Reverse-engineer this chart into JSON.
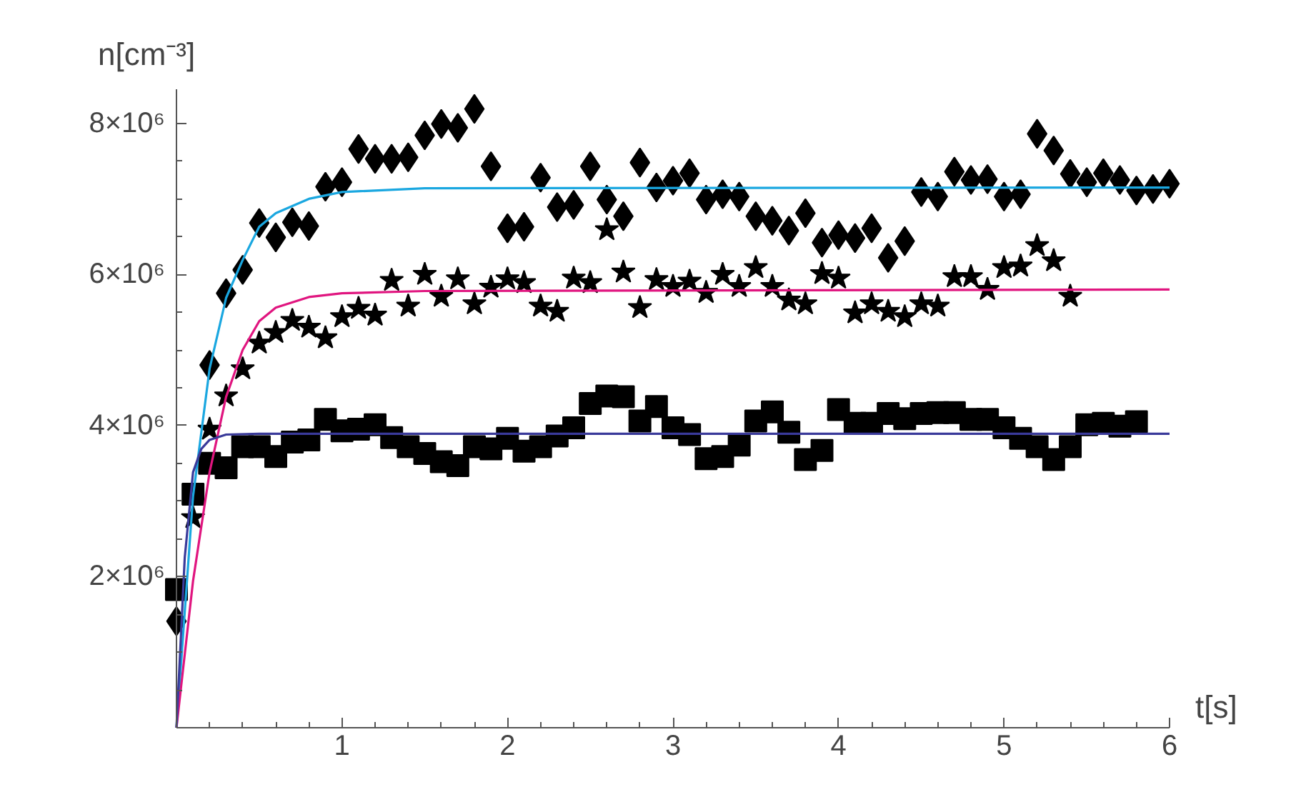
{
  "chart_data": {
    "type": "scatter",
    "xlabel": "t[s]",
    "ylabel": "n[cm⁻³]",
    "x": [
      0,
      0.1,
      0.2,
      0.3,
      0.4,
      0.5,
      0.6,
      0.7,
      0.8,
      0.9,
      1.0,
      1.1,
      1.2,
      1.3,
      1.4,
      1.5,
      1.6,
      1.7,
      1.8,
      1.9,
      2.0,
      2.1,
      2.2,
      2.3,
      2.4,
      2.5,
      2.6,
      2.7,
      2.8,
      2.9,
      3.0,
      3.1,
      3.2,
      3.3,
      3.4,
      3.5,
      3.6,
      3.7,
      3.8,
      3.9,
      4.0,
      4.1,
      4.2,
      4.3,
      4.4,
      4.5,
      4.6,
      4.7,
      4.8,
      4.9,
      5.0,
      5.1,
      5.2,
      5.3,
      5.4,
      5.5,
      5.6,
      5.7,
      5.8,
      5.9,
      6.0
    ],
    "series": [
      {
        "marker": "diamond",
        "color": "#000000",
        "values": [
          1410000,
          null,
          4800000,
          5750000,
          6060000,
          6680000,
          6490000,
          6690000,
          6640000,
          7160000,
          7220000,
          7660000,
          7530000,
          7530000,
          7550000,
          7840000,
          7990000,
          7940000,
          8190000,
          7430000,
          6610000,
          6630000,
          7280000,
          6890000,
          6920000,
          7430000,
          6990000,
          6770000,
          7480000,
          7150000,
          7240000,
          7340000,
          6990000,
          7060000,
          7030000,
          6770000,
          6710000,
          6580000,
          6810000,
          6420000,
          6520000,
          6480000,
          6610000,
          6220000,
          6440000,
          7090000,
          7030000,
          7360000,
          7250000,
          7260000,
          7030000,
          7060000,
          7860000,
          7640000,
          7330000,
          7220000,
          7340000,
          7250000,
          7110000,
          7130000,
          7200000
        ]
      },
      {
        "marker": "star",
        "color": "#000000",
        "values": [
          null,
          2780000,
          3950000,
          4390000,
          4750000,
          5090000,
          5230000,
          5390000,
          5300000,
          5160000,
          5440000,
          5550000,
          5460000,
          5920000,
          5580000,
          6000000,
          5710000,
          5940000,
          5610000,
          5830000,
          5940000,
          5890000,
          5580000,
          5510000,
          5950000,
          5890000,
          6590000,
          6030000,
          5560000,
          5930000,
          5840000,
          5910000,
          5760000,
          6000000,
          5840000,
          6090000,
          5840000,
          5660000,
          5610000,
          6010000,
          5950000,
          5490000,
          5610000,
          5510000,
          5440000,
          5610000,
          5580000,
          5970000,
          5970000,
          5800000,
          6090000,
          6110000,
          6380000,
          6180000,
          5710000,
          null,
          null,
          null,
          null,
          null,
          null
        ]
      },
      {
        "marker": "square",
        "color": "#000000",
        "values": [
          1830000,
          3090000,
          3500000,
          3440000,
          3720000,
          3720000,
          3590000,
          3780000,
          3810000,
          4080000,
          3930000,
          3950000,
          4010000,
          3840000,
          3720000,
          3630000,
          3520000,
          3470000,
          3720000,
          3690000,
          3830000,
          3660000,
          3720000,
          3860000,
          3970000,
          4290000,
          4390000,
          4380000,
          4060000,
          4250000,
          3970000,
          3880000,
          3560000,
          3590000,
          3740000,
          4060000,
          4180000,
          3910000,
          3550000,
          3670000,
          4210000,
          4030000,
          4030000,
          4160000,
          4090000,
          4160000,
          4170000,
          4170000,
          4080000,
          4080000,
          3970000,
          3830000,
          3720000,
          3550000,
          3720000,
          4010000,
          4030000,
          3990000,
          4050000,
          null,
          null
        ]
      },
      {
        "type": "line",
        "marker": "none",
        "color": "#1aa7e0",
        "x": [
          0,
          0.1,
          0.2,
          0.3,
          0.4,
          0.5,
          0.6,
          0.8,
          1.0,
          1.5,
          6.0
        ],
        "values": [
          0,
          3060000,
          4750000,
          5690000,
          6190000,
          6630000,
          6810000,
          7000000,
          7090000,
          7140000,
          7150000
        ]
      },
      {
        "type": "line",
        "marker": "none",
        "color": "#e0157f",
        "x": [
          0,
          0.1,
          0.2,
          0.3,
          0.4,
          0.5,
          0.6,
          0.8,
          1.0,
          1.5,
          6.0
        ],
        "values": [
          0,
          1940000,
          3380000,
          4380000,
          5000000,
          5380000,
          5560000,
          5700000,
          5750000,
          5780000,
          5800000
        ]
      },
      {
        "type": "line",
        "marker": "none",
        "color": "#3a3a9a",
        "x": [
          0,
          0.05,
          0.1,
          0.15,
          0.2,
          0.3,
          0.5,
          6.0
        ],
        "values": [
          0,
          2250000,
          3380000,
          3690000,
          3810000,
          3880000,
          3890000,
          3890000
        ]
      }
    ],
    "xlim": [
      0,
      6.0
    ],
    "ylim": [
      0,
      8450000
    ],
    "xticks": [
      {
        "value": 0.2,
        "label": null
      },
      {
        "value": 0.4,
        "label": null
      },
      {
        "value": 0.6,
        "label": null
      },
      {
        "value": 0.8,
        "label": null
      },
      1,
      {
        "value": 1.2,
        "label": null
      },
      {
        "value": 1.4,
        "label": null
      },
      {
        "value": 1.6,
        "label": null
      },
      {
        "value": 1.8,
        "label": null
      },
      2,
      {
        "value": 2.2,
        "label": null
      },
      {
        "value": 2.4,
        "label": null
      },
      {
        "value": 2.6,
        "label": null
      },
      {
        "value": 2.8,
        "label": null
      },
      3,
      {
        "value": 3.2,
        "label": null
      },
      {
        "value": 3.4,
        "label": null
      },
      {
        "value": 3.6,
        "label": null
      },
      {
        "value": 3.8,
        "label": null
      },
      4,
      {
        "value": 4.2,
        "label": null
      },
      {
        "value": 4.4,
        "label": null
      },
      {
        "value": 4.6,
        "label": null
      },
      {
        "value": 4.8,
        "label": null
      },
      5,
      {
        "value": 5.2,
        "label": null
      },
      {
        "value": 5.4,
        "label": null
      },
      {
        "value": 5.6,
        "label": null
      },
      {
        "value": 5.8,
        "label": null
      },
      6
    ],
    "yticks": [
      {
        "value": 500000,
        "label": null
      },
      {
        "value": 1000000,
        "label": null
      },
      {
        "value": 1500000,
        "label": null
      },
      {
        "value": 2000000,
        "label": "2×10⁶"
      },
      {
        "value": 2500000,
        "label": null
      },
      {
        "value": 3000000,
        "label": null
      },
      {
        "value": 3500000,
        "label": null
      },
      {
        "value": 4000000,
        "label": "4×10⁶"
      },
      {
        "value": 4500000,
        "label": null
      },
      {
        "value": 5000000,
        "label": null
      },
      {
        "value": 5500000,
        "label": null
      },
      {
        "value": 6000000,
        "label": "6×10⁶"
      },
      {
        "value": 6500000,
        "label": null
      },
      {
        "value": 7000000,
        "label": null
      },
      {
        "value": 7500000,
        "label": null
      },
      {
        "value": 8000000,
        "label": "8×10⁶"
      }
    ],
    "grid": false
  }
}
